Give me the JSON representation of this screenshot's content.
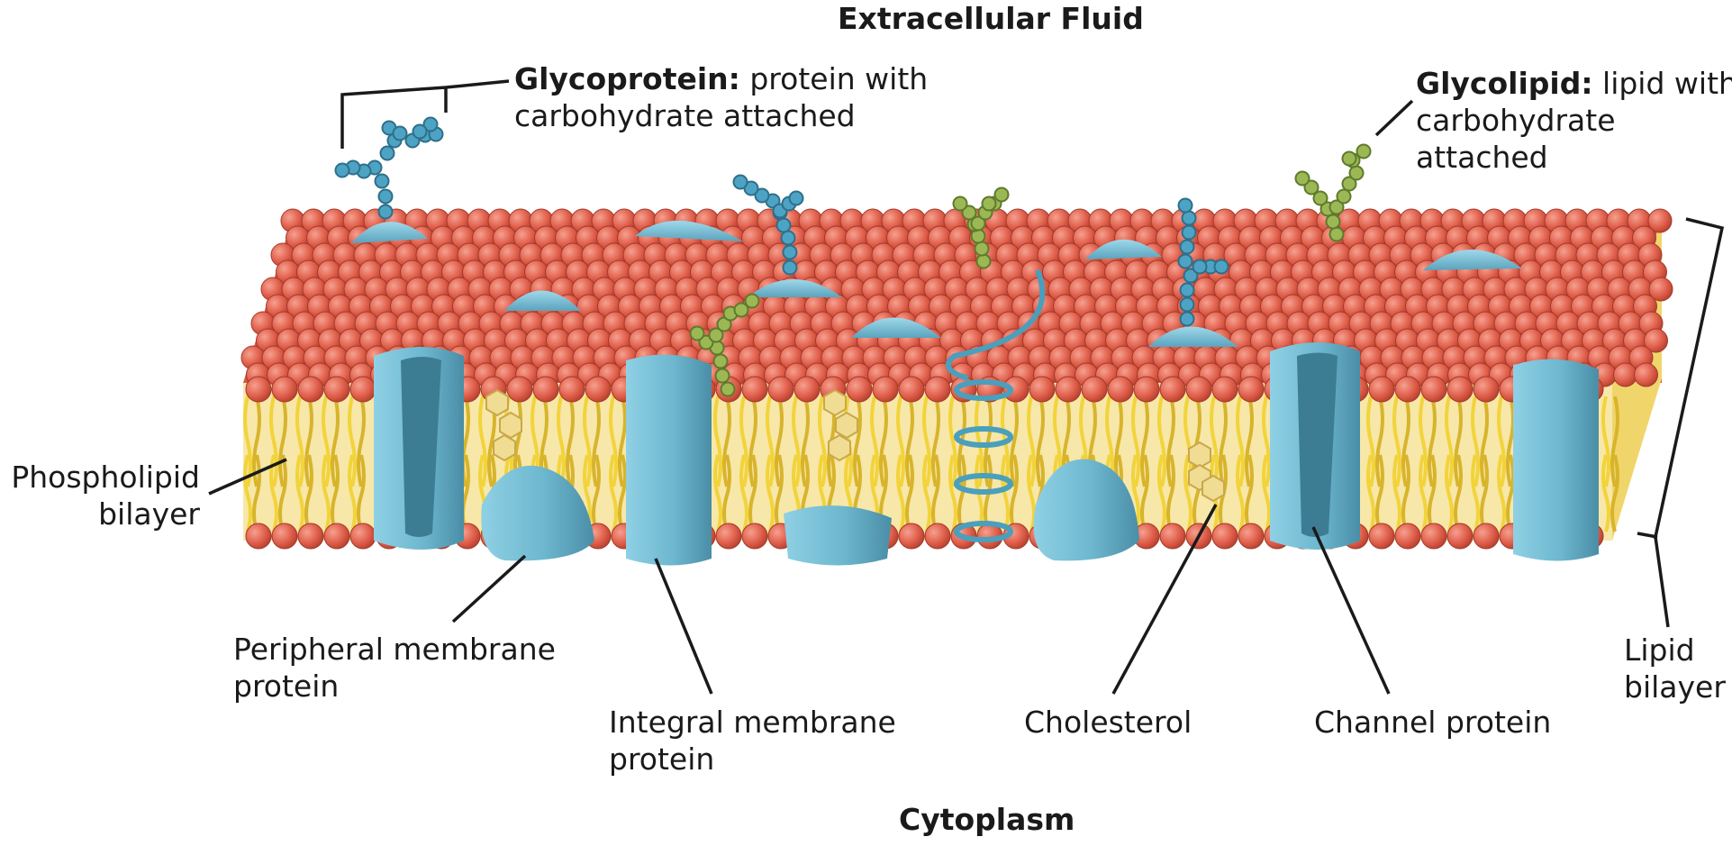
{
  "diagram": {
    "top_heading": "Extracellular Fluid",
    "bottom_heading": "Cytoplasm",
    "glycoprotein": {
      "term": "Glycoprotein:",
      "line1": " protein with",
      "line2": "carbohydrate attached"
    },
    "glycolipid": {
      "term": "Glycolipid:",
      "line1": " lipid with",
      "line2": "carbohydrate",
      "line3": "attached"
    },
    "phospholipid_bilayer": {
      "line1": "Phospholipid",
      "line2": "bilayer"
    },
    "peripheral_protein": {
      "line1": "Peripheral membrane",
      "line2": "protein"
    },
    "integral_protein": {
      "line1": "Integral membrane",
      "line2": "protein"
    },
    "cholesterol": "Cholesterol",
    "channel_protein": "Channel protein",
    "lipid_bilayer": {
      "line1": "Lipid",
      "line2": "bilayer"
    },
    "colors": {
      "phospholipid_head": "#e0604c",
      "phospholipid_tail": "#f2d33a",
      "protein": "#6db7cf",
      "protein_dark": "#4a8ea6",
      "glycoprotein_chain": "#4da3c4",
      "glycolipid_chain": "#9bb855",
      "cholesterol": "#f0dc92"
    }
  }
}
